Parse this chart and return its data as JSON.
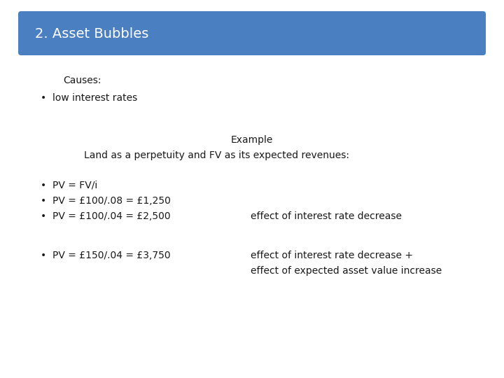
{
  "title": "2. Asset Bubbles",
  "title_bg_color": "#4a7fc1",
  "title_text_color": "#ffffff",
  "bg_color": "#ffffff",
  "text_color": "#1a1a1a",
  "causes_label": "Causes:",
  "bullet1": "low interest rates",
  "example_title": "Example",
  "example_subtitle": "Land as a perpetuity and FV as its expected revenues:",
  "bullet2": "PV = FV/i",
  "bullet3": "PV = £100/.08 = £1,250",
  "bullet4": "PV = £100/.04 = £2,500",
  "bullet4_note": "effect of interest rate decrease",
  "bullet5": "PV = £150/.04 = £3,750",
  "bullet5_note1": "effect of interest rate decrease +",
  "bullet5_note2": "effect of expected asset value increase",
  "title_fontsize": 14,
  "body_fontsize": 10,
  "font_family": "DejaVu Sans"
}
